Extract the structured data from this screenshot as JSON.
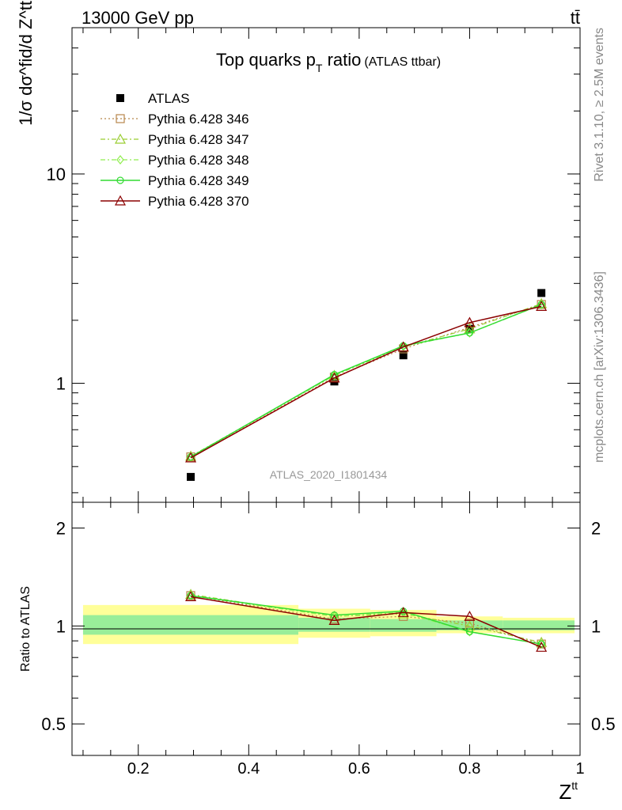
{
  "header": {
    "energy_label": "13000 GeV pp",
    "process_label": "tt̄"
  },
  "side_labels": {
    "rivet": "Rivet 3.1.10, ≥ 2.5M events",
    "mcplots": "mcplots.cern.ch [arXiv:1306.3436]"
  },
  "chart_data": [
    {
      "type": "scatter",
      "panel": "main",
      "title": "Top quarks p",
      "title_sub": "T",
      "title_suffix": " ratio",
      "subtitle": "(ATLAS ttbar)",
      "analysis_label": "ATLAS_2020_I1801434",
      "ylabel": "1/σ dσ^fid/d Z^tt",
      "yscale": "log",
      "ylim": [
        0.27,
        50
      ],
      "xlim": [
        0.08,
        1.0
      ],
      "yticks": [
        {
          "value": 1,
          "label": "1"
        },
        {
          "value": 10,
          "label": "10"
        }
      ],
      "grid": false,
      "legend_position": "top-left",
      "x": [
        0.295,
        0.555,
        0.68,
        0.8,
        0.93
      ],
      "series": [
        {
          "name": "ATLAS",
          "color": "#000000",
          "marker": "filled-square",
          "values": [
            0.357,
            1.02,
            1.36,
            1.82,
            2.7
          ]
        },
        {
          "name": "Pythia 6.428 346",
          "color": "#b8864b",
          "marker": "open-square",
          "line": "dotted",
          "values": [
            0.445,
            1.07,
            1.46,
            1.85,
            2.38
          ]
        },
        {
          "name": "Pythia 6.428 347",
          "color": "#9acd32",
          "marker": "open-triangle",
          "line": "dashdot",
          "values": [
            0.448,
            1.09,
            1.49,
            1.82,
            2.4
          ]
        },
        {
          "name": "Pythia 6.428 348",
          "color": "#90ee50",
          "marker": "open-diamond",
          "line": "dashdot",
          "values": [
            0.445,
            1.09,
            1.5,
            1.74,
            2.37
          ]
        },
        {
          "name": "Pythia 6.428 349",
          "color": "#32dc32",
          "marker": "open-circle-cross",
          "line": "solid",
          "values": [
            0.445,
            1.1,
            1.51,
            1.74,
            2.38
          ]
        },
        {
          "name": "Pythia 6.428 370",
          "color": "#8b0000",
          "marker": "open-triangle",
          "line": "solid",
          "values": [
            0.44,
            1.06,
            1.49,
            1.95,
            2.33
          ]
        }
      ]
    },
    {
      "type": "line",
      "panel": "ratio",
      "ylabel": "Ratio to ATLAS",
      "xlabel": "Z",
      "xlabel_sup": "tt",
      "xlim": [
        0.08,
        1.0
      ],
      "ylim": [
        0.4,
        2.4
      ],
      "yscale": "log",
      "xticks": [
        {
          "value": 0.2,
          "label": "0.2"
        },
        {
          "value": 0.4,
          "label": "0.4"
        },
        {
          "value": 0.6,
          "label": "0.6"
        },
        {
          "value": 0.8,
          "label": "0.8"
        },
        {
          "value": 1.0,
          "label": "1"
        }
      ],
      "yticks": [
        {
          "value": 0.5,
          "label": "0.5"
        },
        {
          "value": 1,
          "label": "1"
        },
        {
          "value": 2,
          "label": "2"
        }
      ],
      "bands": [
        {
          "x_low": 0.1,
          "x_high": 0.49,
          "stat_low": 0.94,
          "stat_high": 1.08,
          "tot_low": 0.88,
          "tot_high": 1.16
        },
        {
          "x_low": 0.49,
          "x_high": 0.62,
          "stat_low": 0.96,
          "stat_high": 1.06,
          "tot_low": 0.92,
          "tot_high": 1.13
        },
        {
          "x_low": 0.62,
          "x_high": 0.74,
          "stat_low": 0.96,
          "stat_high": 1.05,
          "tot_low": 0.93,
          "tot_high": 1.12
        },
        {
          "x_low": 0.74,
          "x_high": 0.86,
          "stat_low": 0.97,
          "stat_high": 1.04,
          "tot_low": 0.95,
          "tot_high": 1.07
        },
        {
          "x_low": 0.86,
          "x_high": 0.99,
          "stat_low": 0.97,
          "stat_high": 1.04,
          "tot_low": 0.95,
          "tot_high": 1.06
        }
      ],
      "x": [
        0.295,
        0.555,
        0.68,
        0.8,
        0.93
      ],
      "series": [
        {
          "name": "Pythia 6.428 346",
          "color": "#b8864b",
          "marker": "open-square",
          "line": "dotted",
          "values": [
            1.24,
            1.05,
            1.07,
            1.02,
            0.88
          ]
        },
        {
          "name": "Pythia 6.428 347",
          "color": "#9acd32",
          "marker": "open-triangle",
          "line": "dashdot",
          "values": [
            1.25,
            1.07,
            1.09,
            1.0,
            0.89
          ]
        },
        {
          "name": "Pythia 6.428 348",
          "color": "#90ee50",
          "marker": "open-diamond",
          "line": "dashdot",
          "values": [
            1.24,
            1.07,
            1.1,
            0.96,
            0.88
          ]
        },
        {
          "name": "Pythia 6.428 349",
          "color": "#32dc32",
          "marker": "open-circle-cross",
          "line": "solid",
          "values": [
            1.24,
            1.08,
            1.11,
            0.96,
            0.88
          ]
        },
        {
          "name": "Pythia 6.428 370",
          "color": "#8b0000",
          "marker": "open-triangle",
          "line": "solid",
          "values": [
            1.23,
            1.04,
            1.1,
            1.07,
            0.86
          ]
        }
      ]
    }
  ]
}
